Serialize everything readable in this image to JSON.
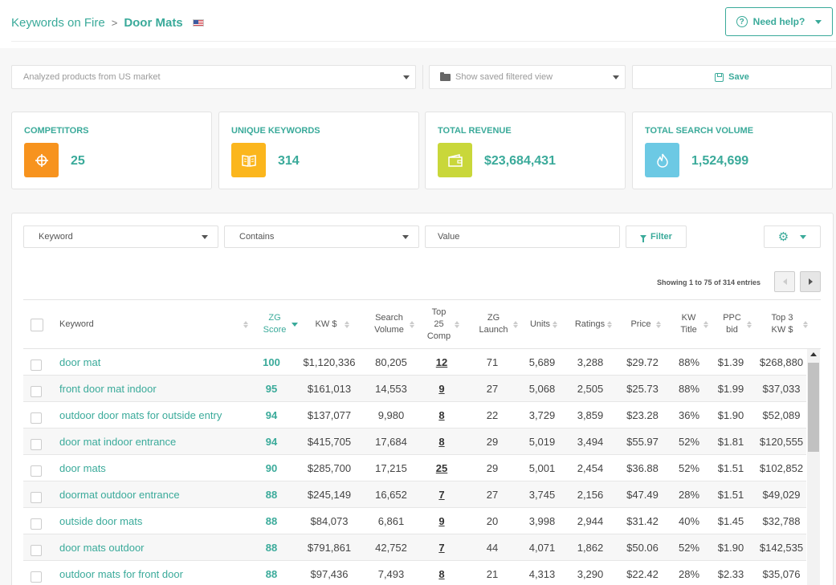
{
  "breadcrumb": {
    "parent": "Keywords on Fire",
    "separator": ">",
    "current": "Door Mats",
    "flag": "us-flag"
  },
  "help_button": {
    "label": "Need help?",
    "icon": "question-circle-icon"
  },
  "market_select": {
    "value": "Analyzed products from US market"
  },
  "saved_view_select": {
    "value": "Show saved filtered view",
    "icon": "folder-icon"
  },
  "save_button": {
    "label": "Save",
    "icon": "disk-icon"
  },
  "stats": [
    {
      "title": "COMPETITORS",
      "value": "25",
      "icon": "crosshair-icon",
      "color": "#f7931e"
    },
    {
      "title": "UNIQUE KEYWORDS",
      "value": "314",
      "icon": "book-icon",
      "color": "#fbb61d"
    },
    {
      "title": "TOTAL REVENUE",
      "value": "$23,684,431",
      "icon": "wallet-icon",
      "color": "#c9d73a"
    },
    {
      "title": "TOTAL SEARCH VOLUME",
      "value": "1,524,699",
      "icon": "flame-icon",
      "color": "#6cc9e4"
    }
  ],
  "filters": {
    "field": "Keyword",
    "operator": "Contains",
    "value_placeholder": "Value",
    "filter_label": "Filter"
  },
  "pagination": {
    "showing": "Showing 1 to 75 of 314 entries"
  },
  "table": {
    "headers": [
      "Keyword",
      "ZG Score",
      "KW $",
      "Search Volume",
      "Top 25 Comp",
      "ZG Launch",
      "Units",
      "Ratings",
      "Price",
      "KW Title",
      "PPC bid",
      "Top 3 KW $"
    ],
    "rows": [
      [
        "door mat",
        "100",
        "$1,120,336",
        "80,205",
        "12",
        "71",
        "5,689",
        "3,288",
        "$29.72",
        "88%",
        "$1.39",
        "$268,880"
      ],
      [
        "front door mat indoor",
        "95",
        "$161,013",
        "14,553",
        "9",
        "27",
        "5,068",
        "2,505",
        "$25.73",
        "88%",
        "$1.99",
        "$37,033"
      ],
      [
        "outdoor door mats for outside entry",
        "94",
        "$137,077",
        "9,980",
        "8",
        "22",
        "3,729",
        "3,859",
        "$23.28",
        "36%",
        "$1.90",
        "$52,089"
      ],
      [
        "door mat indoor entrance",
        "94",
        "$415,705",
        "17,684",
        "8",
        "29",
        "5,019",
        "3,494",
        "$55.97",
        "52%",
        "$1.81",
        "$120,555"
      ],
      [
        "door mats",
        "90",
        "$285,700",
        "17,215",
        "25",
        "29",
        "5,001",
        "2,454",
        "$36.88",
        "52%",
        "$1.51",
        "$102,852"
      ],
      [
        "doormat outdoor entrance",
        "88",
        "$245,149",
        "16,652",
        "7",
        "27",
        "3,745",
        "2,156",
        "$47.49",
        "28%",
        "$1.51",
        "$49,029"
      ],
      [
        "outside door mats",
        "88",
        "$84,073",
        "6,861",
        "9",
        "20",
        "3,998",
        "2,944",
        "$31.42",
        "40%",
        "$1.45",
        "$32,788"
      ],
      [
        "door mats outdoor",
        "88",
        "$791,861",
        "42,752",
        "7",
        "44",
        "4,071",
        "1,862",
        "$50.06",
        "52%",
        "$1.90",
        "$142,535"
      ],
      [
        "outdoor mats for front door",
        "88",
        "$97,436",
        "7,493",
        "8",
        "21",
        "4,313",
        "3,290",
        "$22.42",
        "28%",
        "$2.33",
        "$35,076"
      ]
    ]
  }
}
